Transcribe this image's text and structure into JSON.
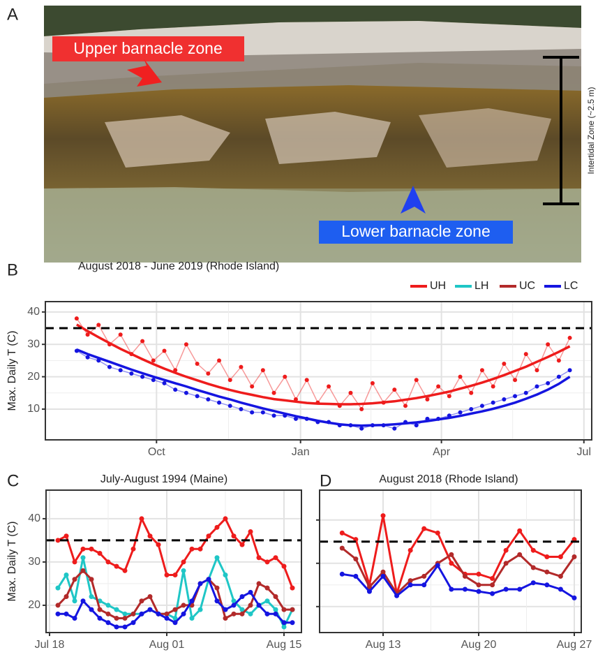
{
  "photo": {
    "panel": "A",
    "upper_label": "Upper barnacle zone",
    "lower_label": "Lower barnacle zone",
    "scale_label": "Intertidal Zone (~2.5 m)"
  },
  "chart_data": [
    {
      "type": "line",
      "panel": "B",
      "title": "August 2018 - June 2019 (Rhode Island)",
      "ylabel": "Max. Daily T (C)",
      "x": [
        10,
        17,
        24,
        31,
        38,
        45,
        52,
        59,
        66,
        73,
        80,
        87,
        94,
        101,
        108,
        115,
        122,
        129,
        136,
        143,
        150,
        157,
        164,
        171,
        178,
        185,
        192,
        199,
        206,
        213,
        220,
        227,
        234,
        241,
        248,
        255,
        262,
        269,
        276,
        283,
        290,
        297,
        304,
        311,
        318,
        325
      ],
      "xlim": [
        -10,
        339
      ],
      "xticks": [
        {
          "value": 61,
          "label": "Oct"
        },
        {
          "value": 153,
          "label": "Jan"
        },
        {
          "value": 243,
          "label": "Apr"
        },
        {
          "value": 334,
          "label": "Jul"
        }
      ],
      "ylim": [
        0.5,
        43.2
      ],
      "yticks": [
        10,
        20,
        30,
        40
      ],
      "grid": true,
      "threshold": 35,
      "legend": [
        {
          "name": "UH",
          "color": "#ee1c1c"
        },
        {
          "name": "LH",
          "color": "#1fc6c6"
        },
        {
          "name": "UC",
          "color": "#b22a2a"
        },
        {
          "name": "LC",
          "color": "#1515e0"
        }
      ],
      "series": [
        {
          "color": "#ee1c1c",
          "values": [
            38,
            33,
            36,
            30,
            33,
            27,
            31,
            25,
            28,
            22,
            30,
            24,
            21,
            25,
            19,
            23,
            17,
            22,
            15,
            20,
            13,
            19,
            12,
            17,
            11,
            15,
            10,
            18,
            12,
            16,
            11,
            19,
            13,
            17,
            14,
            20,
            15,
            22,
            17,
            24,
            19,
            27,
            22,
            30,
            25,
            32
          ],
          "trend": [
            36.1,
            34.1,
            32.2,
            30.4,
            28.6,
            27.0,
            25.4,
            23.9,
            22.5,
            21.2,
            20.0,
            18.9,
            17.8,
            16.8,
            15.9,
            15.1,
            14.4,
            13.7,
            13.1,
            12.7,
            12.3,
            11.9,
            11.7,
            11.6,
            11.5,
            11.5,
            11.6,
            11.8,
            12.1,
            12.4,
            12.9,
            13.4,
            14.0,
            14.7,
            15.4,
            16.3,
            17.2,
            18.2,
            19.3,
            20.5,
            21.8,
            23.1,
            24.6,
            26.1,
            27.7,
            29.4
          ]
        },
        {
          "color": "#1515e0",
          "values": [
            28,
            26,
            25,
            23,
            22,
            21,
            20,
            19,
            18,
            16,
            15,
            14,
            13,
            12,
            11,
            10,
            9,
            9,
            8,
            8,
            7,
            7,
            6,
            6,
            5,
            5,
            4,
            5,
            5,
            4,
            6,
            5,
            7,
            7,
            8,
            9,
            10,
            11,
            12,
            13,
            14,
            15,
            17,
            18,
            20,
            22
          ],
          "trend": [
            28.4,
            27.0,
            25.8,
            24.6,
            23.4,
            22.2,
            21.1,
            20.0,
            19.0,
            18.0,
            17.0,
            15.9,
            14.9,
            13.9,
            13.0,
            12.0,
            11.1,
            10.2,
            9.4,
            8.6,
            7.8,
            7.1,
            6.4,
            5.8,
            5.3,
            5.0,
            4.9,
            5.0,
            5.1,
            5.3,
            5.6,
            5.9,
            6.3,
            6.8,
            7.3,
            7.9,
            8.6,
            9.3,
            10.1,
            11.0,
            12.0,
            13.2,
            14.5,
            16.0,
            17.8,
            20.0
          ]
        }
      ]
    },
    {
      "type": "line",
      "panel": "C",
      "title": "July-August 1994 (Maine)",
      "ylabel": "Max. Daily T (C)",
      "categories": [
        "Jul 18",
        null,
        null,
        null,
        null,
        null,
        null,
        null,
        null,
        null,
        null,
        null,
        null,
        null,
        "Aug 01",
        null,
        null,
        null,
        null,
        null,
        null,
        null,
        null,
        null,
        null,
        null,
        null,
        null,
        "Aug 15",
        null
      ],
      "ylim": [
        13.7,
        46.6
      ],
      "yticks": [
        20,
        30,
        40
      ],
      "grid": true,
      "threshold": 35,
      "series": [
        {
          "color": "#ee1c1c",
          "values": [
            null,
            35,
            36,
            30,
            33,
            33,
            32,
            30,
            29,
            28,
            33,
            40,
            36,
            34,
            27,
            27,
            30,
            33,
            33,
            36,
            38,
            40,
            36,
            34,
            37,
            31,
            30,
            31,
            29,
            24
          ]
        },
        {
          "color": "#1fc6c6",
          "values": [
            null,
            24,
            27,
            21,
            31,
            22,
            21,
            20,
            19,
            18,
            18,
            18,
            19,
            18,
            18,
            17,
            28,
            17,
            19,
            26,
            31,
            27,
            21,
            19,
            18,
            20,
            21,
            19,
            15,
            19
          ]
        },
        {
          "color": "#b22a2a",
          "values": [
            null,
            20,
            22,
            26,
            28,
            26,
            19,
            18,
            17,
            17,
            18,
            21,
            22,
            18,
            18,
            19,
            20,
            20,
            25,
            26,
            24,
            17,
            18,
            18,
            20,
            25,
            24,
            22,
            19,
            19
          ]
        },
        {
          "color": "#1515e0",
          "values": [
            null,
            18,
            18,
            17,
            21,
            19,
            17,
            16,
            15,
            15,
            16,
            18,
            19,
            18,
            17,
            16,
            18,
            21,
            25,
            26,
            21,
            19,
            20,
            22,
            23,
            20,
            18,
            18,
            16,
            16
          ]
        }
      ]
    },
    {
      "type": "line",
      "panel": "D",
      "title": "August 2018 (Rhode Island)",
      "categories": [
        null,
        null,
        null,
        "Aug 13",
        null,
        null,
        null,
        null,
        null,
        null,
        "Aug 20",
        null,
        null,
        null,
        null,
        null,
        null,
        "Aug 27"
      ],
      "ylim": [
        14.0,
        46.9
      ],
      "yticks": [
        20,
        30,
        40
      ],
      "ytick_labels": false,
      "grid": true,
      "threshold": 35,
      "series": [
        {
          "color": "#ee1c1c",
          "values": [
            37,
            35.5,
            25,
            41,
            23,
            33,
            38,
            37,
            30,
            27.5,
            27.5,
            26.5,
            33,
            37.5,
            33,
            31.5,
            31.5,
            35.5
          ]
        },
        {
          "color": "#b22a2a",
          "values": [
            33.5,
            31,
            24.5,
            28,
            23,
            26,
            27,
            30,
            32,
            27,
            25,
            25,
            30,
            32,
            29,
            28,
            27,
            31.5
          ]
        },
        {
          "color": "#1515e0",
          "values": [
            27.5,
            27,
            23.5,
            27,
            22.5,
            25,
            25,
            29.5,
            24,
            24,
            23.5,
            23,
            24,
            24,
            25.5,
            25,
            24,
            22
          ]
        }
      ]
    }
  ]
}
